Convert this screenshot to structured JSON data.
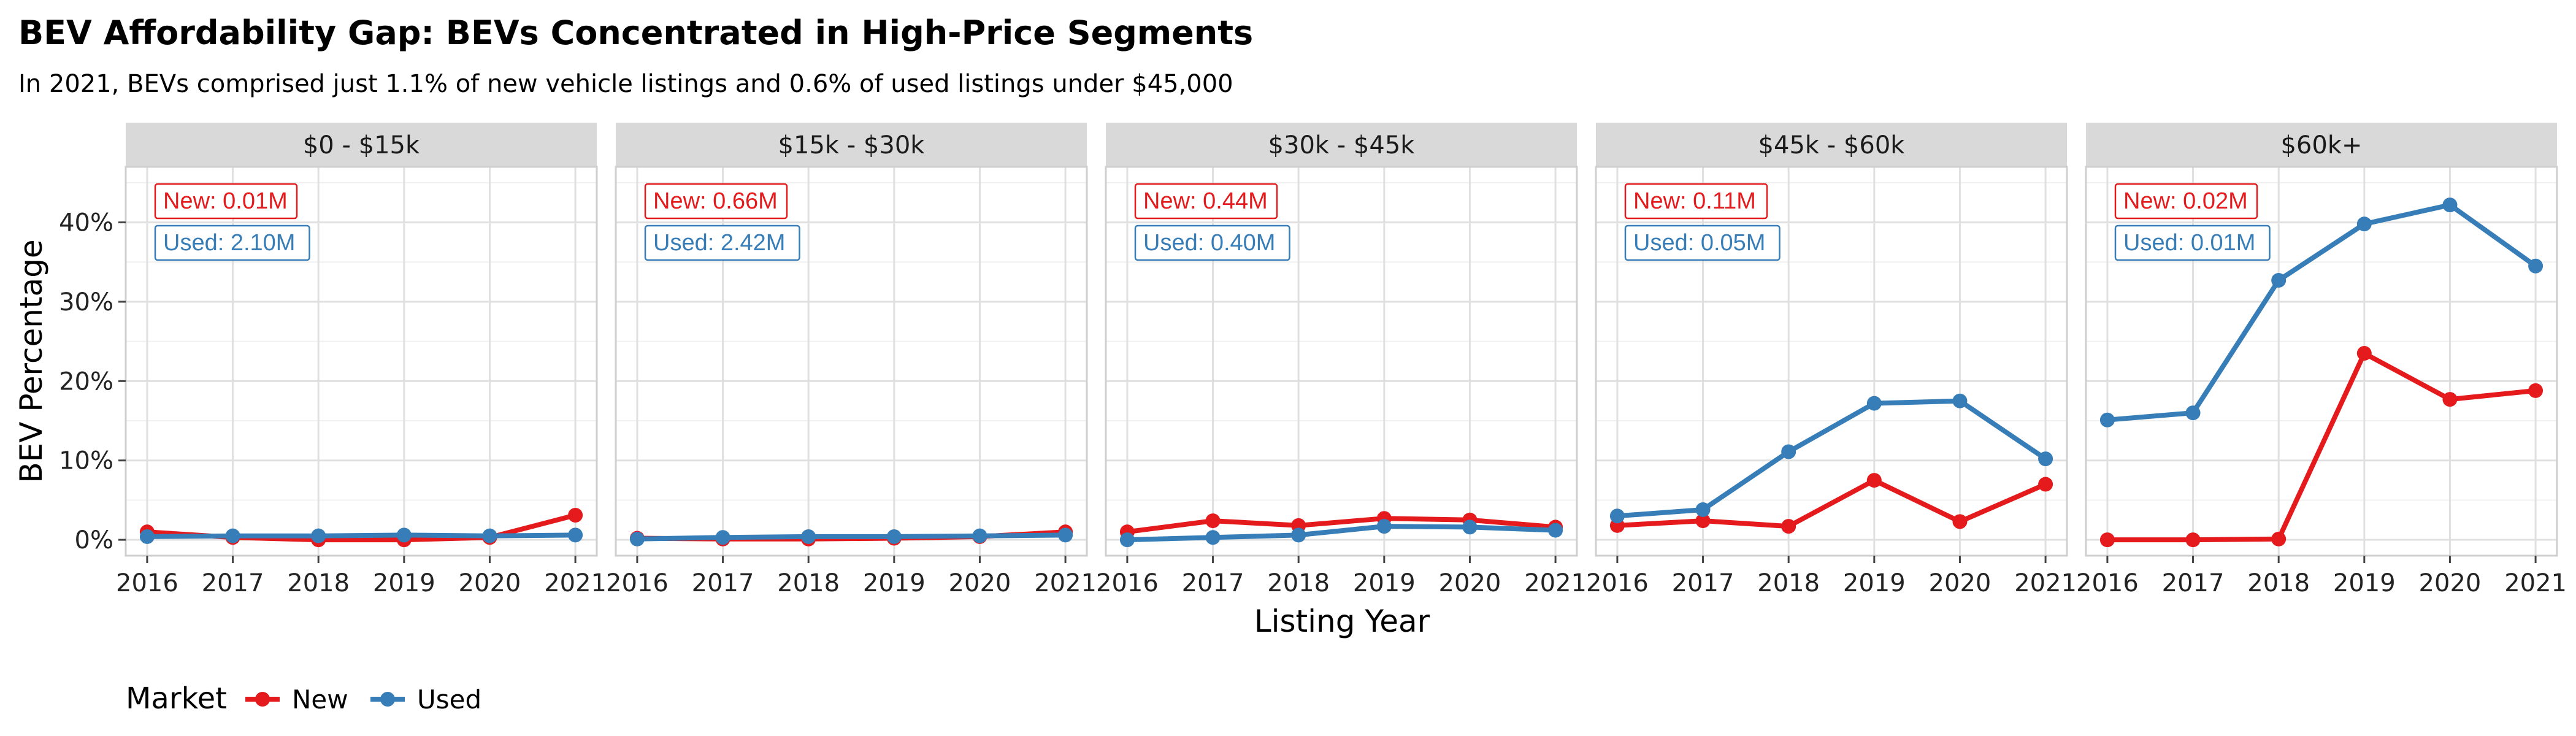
{
  "chart_data": {
    "type": "line",
    "title": "BEV Affordability Gap: BEVs Concentrated in High-Price Segments",
    "subtitle": "In 2021, BEVs comprised just 1.1% of new vehicle listings and 0.6% of used listings under $45,000",
    "xlabel": "Listing Year",
    "ylabel": "BEV Percentage",
    "x": [
      2016,
      2017,
      2018,
      2019,
      2020,
      2021
    ],
    "x_tick_labels": [
      "2016",
      "2017",
      "2018",
      "2019",
      "2020",
      "2021"
    ],
    "ylim": [
      -2,
      47
    ],
    "y_ticks": [
      0,
      10,
      20,
      30,
      40
    ],
    "y_tick_labels": [
      "0%",
      "10%",
      "20%",
      "30%",
      "40%"
    ],
    "grid": true,
    "legend": {
      "title": "Market",
      "position": "bottom-left",
      "entries": [
        {
          "name": "New",
          "color": "#e41a1c"
        },
        {
          "name": "Used",
          "color": "#377eb8"
        }
      ]
    },
    "panels": [
      {
        "label": "$0 - $15k",
        "annotations": [
          "New: 0.01M",
          "Used: 2.10M"
        ],
        "series": [
          {
            "name": "New",
            "values": [
              1.0,
              0.3,
              0.0,
              0.0,
              0.3,
              3.1
            ]
          },
          {
            "name": "Used",
            "values": [
              0.4,
              0.5,
              0.5,
              0.6,
              0.5,
              0.6
            ]
          }
        ]
      },
      {
        "label": "$15k - $30k",
        "annotations": [
          "New: 0.66M",
          "Used: 2.42M"
        ],
        "series": [
          {
            "name": "New",
            "values": [
              0.2,
              0.1,
              0.1,
              0.2,
              0.4,
              1.0
            ]
          },
          {
            "name": "Used",
            "values": [
              0.1,
              0.3,
              0.4,
              0.4,
              0.5,
              0.6
            ]
          }
        ]
      },
      {
        "label": "$30k - $45k",
        "annotations": [
          "New: 0.44M",
          "Used: 0.40M"
        ],
        "series": [
          {
            "name": "New",
            "values": [
              1.0,
              2.4,
              1.8,
              2.7,
              2.5,
              1.6
            ]
          },
          {
            "name": "Used",
            "values": [
              0.0,
              0.3,
              0.6,
              1.7,
              1.6,
              1.2
            ]
          }
        ]
      },
      {
        "label": "$45k - $60k",
        "annotations": [
          "New: 0.11M",
          "Used: 0.05M"
        ],
        "series": [
          {
            "name": "New",
            "values": [
              1.8,
              2.4,
              1.7,
              7.5,
              2.3,
              7.0
            ]
          },
          {
            "name": "Used",
            "values": [
              3.0,
              3.8,
              11.1,
              17.2,
              17.5,
              10.2
            ]
          }
        ]
      },
      {
        "label": "$60k+",
        "annotations": [
          "New: 0.02M",
          "Used: 0.01M"
        ],
        "series": [
          {
            "name": "New",
            "values": [
              0.0,
              0.0,
              0.1,
              23.5,
              17.7,
              18.8
            ]
          },
          {
            "name": "Used",
            "values": [
              15.1,
              16.0,
              32.7,
              39.8,
              42.2,
              34.5
            ]
          }
        ]
      }
    ]
  }
}
